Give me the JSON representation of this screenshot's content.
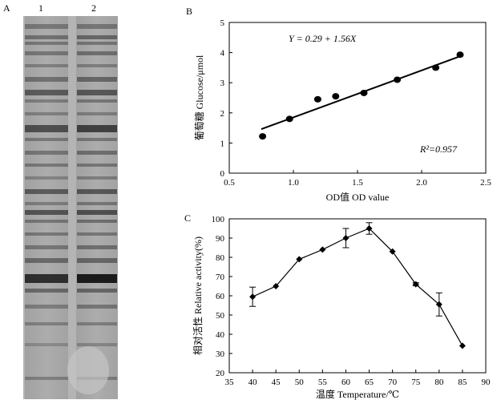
{
  "panels": {
    "a": {
      "letter": "A",
      "lanes": [
        "1",
        "2"
      ]
    },
    "b": {
      "letter": "B"
    },
    "c": {
      "letter": "C"
    }
  },
  "chart_data": [
    {
      "panel": "A",
      "type": "gel",
      "lanes": [
        "1",
        "2"
      ]
    },
    {
      "panel": "B",
      "type": "scatter",
      "xlabel": "OD值 OD value",
      "ylabel": "葡萄糖 Glucose/μmol",
      "xlim": [
        0.5,
        2.5
      ],
      "ylim": [
        0,
        5
      ],
      "xticks": [
        0.5,
        1.0,
        1.5,
        2.0,
        2.5
      ],
      "yticks": [
        0,
        1,
        2,
        3,
        4,
        5
      ],
      "points": [
        {
          "x": 0.76,
          "y": 1.22
        },
        {
          "x": 0.97,
          "y": 1.8
        },
        {
          "x": 1.19,
          "y": 2.45
        },
        {
          "x": 1.33,
          "y": 2.55
        },
        {
          "x": 1.55,
          "y": 2.66
        },
        {
          "x": 1.81,
          "y": 3.1
        },
        {
          "x": 2.11,
          "y": 3.5
        },
        {
          "x": 2.3,
          "y": 3.93
        }
      ],
      "fit": {
        "intercept": 0.29,
        "slope": 1.56,
        "x_range": [
          0.75,
          2.3
        ]
      },
      "equation": "Y = 0.29 + 1.56X",
      "r2_label": "R²=0.957",
      "legend": "none",
      "grid": false
    },
    {
      "panel": "C",
      "type": "line",
      "xlabel": "温度 Temperature/℃",
      "ylabel": "相对活性 Relative activity(%)",
      "xlim": [
        35,
        90
      ],
      "ylim": [
        20,
        100
      ],
      "xticks": [
        35,
        40,
        45,
        50,
        55,
        60,
        65,
        70,
        75,
        80,
        85,
        90
      ],
      "yticks": [
        20,
        30,
        40,
        50,
        60,
        70,
        80,
        90,
        100
      ],
      "x": [
        40,
        45,
        50,
        55,
        60,
        65,
        70,
        75,
        80,
        85
      ],
      "values": [
        59.5,
        65,
        79,
        84,
        90,
        95,
        83,
        66,
        55.5,
        34
      ],
      "errors": [
        5,
        0,
        0,
        0,
        5,
        3,
        0,
        0.8,
        6,
        0
      ],
      "legend": "none",
      "grid": false
    }
  ]
}
